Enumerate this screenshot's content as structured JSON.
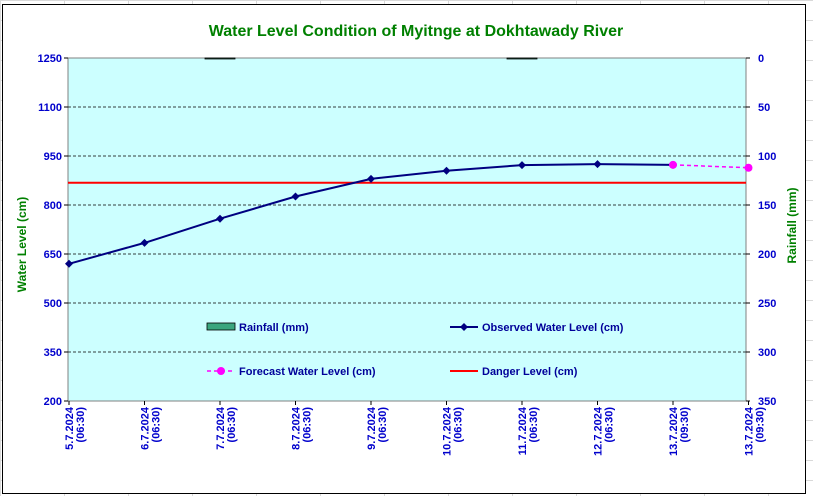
{
  "chart_data": {
    "type": "line",
    "title": "Water Level Condition of Myitnge at Dokhtawady River",
    "ylabel": "Water Level (cm)",
    "y2label": "Rainfall (mm)",
    "ylim": [
      200,
      1250
    ],
    "y2lim": [
      0,
      350
    ],
    "y2_reversed": true,
    "yticks": [
      1250,
      1100,
      950,
      800,
      650,
      500,
      350,
      200
    ],
    "y2ticks": [
      0,
      50,
      100,
      150,
      200,
      250,
      300,
      350
    ],
    "grid": true,
    "categories": [
      "5.7.2024 (06:30)",
      "6.7.2024 (06:30)",
      "7.7.2024 (06:30)",
      "8.7.2024 (06:30)",
      "9.7.2024 (06:30)",
      "10.7.2024 (06:30)",
      "11.7.2024 (06:30)",
      "12.7.2024 (06:30)",
      "13.7.2024 (09:30)",
      "13.7.2024 (09:30)"
    ],
    "series": [
      {
        "name": "Rainfall (mm)",
        "type": "bar",
        "axis": "y2",
        "color": "#3aa67e",
        "values": [
          0,
          0,
          1,
          0,
          0,
          0,
          1,
          0,
          0,
          0
        ]
      },
      {
        "name": "Observed Water Level (cm)",
        "type": "line",
        "marker": "diamond",
        "color": "#000080",
        "values": [
          620,
          684,
          758,
          826,
          880,
          905,
          922,
          925,
          923,
          null
        ]
      },
      {
        "name": "Forecast Water Level (cm)",
        "type": "line",
        "dashed": true,
        "marker": "circle",
        "color": "#ff00ff",
        "values": [
          null,
          null,
          null,
          null,
          null,
          null,
          null,
          null,
          923,
          914
        ]
      },
      {
        "name": "Danger Level (cm)",
        "type": "hline",
        "color": "#ff0000",
        "value": 868
      }
    ],
    "legend": "inside-bottom",
    "plot_background": "#ccffff"
  }
}
